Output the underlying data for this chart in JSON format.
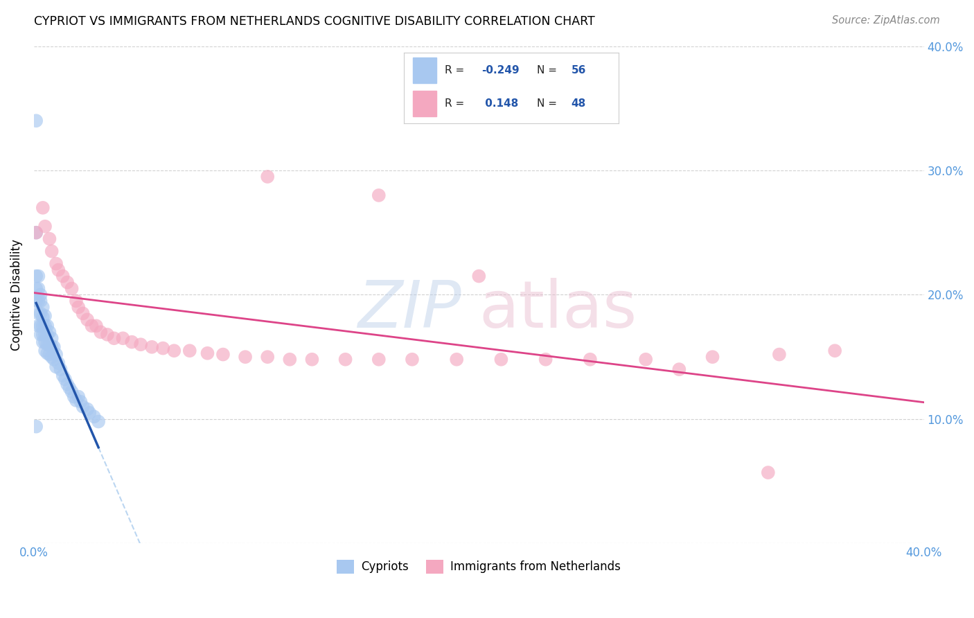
{
  "title": "CYPRIOT VS IMMIGRANTS FROM NETHERLANDS COGNITIVE DISABILITY CORRELATION CHART",
  "source": "Source: ZipAtlas.com",
  "ylabel": "Cognitive Disability",
  "x_min": 0.0,
  "x_max": 0.4,
  "y_min": 0.0,
  "y_max": 0.4,
  "r_cypriot": -0.249,
  "n_cypriot": 56,
  "r_netherlands": 0.148,
  "n_netherlands": 48,
  "cypriot_color": "#a8c8f0",
  "netherlands_color": "#f4a8c0",
  "cypriot_line_color": "#2255aa",
  "netherlands_line_color": "#dd4488",
  "legend_labels": [
    "Cypriots",
    "Immigrants from Netherlands"
  ],
  "cypriot_x": [
    0.001,
    0.001,
    0.001,
    0.001,
    0.001,
    0.002,
    0.002,
    0.002,
    0.002,
    0.002,
    0.003,
    0.003,
    0.003,
    0.003,
    0.003,
    0.004,
    0.004,
    0.004,
    0.004,
    0.004,
    0.005,
    0.005,
    0.005,
    0.005,
    0.005,
    0.006,
    0.006,
    0.006,
    0.006,
    0.007,
    0.007,
    0.007,
    0.008,
    0.008,
    0.008,
    0.009,
    0.009,
    0.01,
    0.01,
    0.011,
    0.012,
    0.013,
    0.014,
    0.015,
    0.016,
    0.017,
    0.018,
    0.019,
    0.02,
    0.021,
    0.022,
    0.024,
    0.025,
    0.027,
    0.029,
    0.001
  ],
  "cypriot_y": [
    0.34,
    0.25,
    0.215,
    0.205,
    0.195,
    0.215,
    0.205,
    0.195,
    0.185,
    0.175,
    0.2,
    0.195,
    0.185,
    0.175,
    0.168,
    0.19,
    0.182,
    0.175,
    0.168,
    0.162,
    0.183,
    0.175,
    0.168,
    0.162,
    0.155,
    0.175,
    0.168,
    0.16,
    0.153,
    0.17,
    0.16,
    0.152,
    0.165,
    0.158,
    0.15,
    0.158,
    0.148,
    0.152,
    0.142,
    0.145,
    0.14,
    0.135,
    0.132,
    0.128,
    0.125,
    0.122,
    0.118,
    0.115,
    0.118,
    0.114,
    0.11,
    0.108,
    0.105,
    0.102,
    0.098,
    0.094
  ],
  "netherlands_x": [
    0.001,
    0.004,
    0.005,
    0.007,
    0.008,
    0.01,
    0.011,
    0.013,
    0.015,
    0.017,
    0.019,
    0.02,
    0.022,
    0.024,
    0.026,
    0.028,
    0.03,
    0.033,
    0.036,
    0.04,
    0.044,
    0.048,
    0.053,
    0.058,
    0.063,
    0.07,
    0.078,
    0.085,
    0.095,
    0.105,
    0.115,
    0.125,
    0.14,
    0.155,
    0.17,
    0.19,
    0.21,
    0.23,
    0.25,
    0.275,
    0.305,
    0.335,
    0.36,
    0.105,
    0.155,
    0.2,
    0.29,
    0.33
  ],
  "netherlands_y": [
    0.25,
    0.27,
    0.255,
    0.245,
    0.235,
    0.225,
    0.22,
    0.215,
    0.21,
    0.205,
    0.195,
    0.19,
    0.185,
    0.18,
    0.175,
    0.175,
    0.17,
    0.168,
    0.165,
    0.165,
    0.162,
    0.16,
    0.158,
    0.157,
    0.155,
    0.155,
    0.153,
    0.152,
    0.15,
    0.15,
    0.148,
    0.148,
    0.148,
    0.148,
    0.148,
    0.148,
    0.148,
    0.148,
    0.148,
    0.148,
    0.15,
    0.152,
    0.155,
    0.295,
    0.28,
    0.215,
    0.14,
    0.057
  ]
}
